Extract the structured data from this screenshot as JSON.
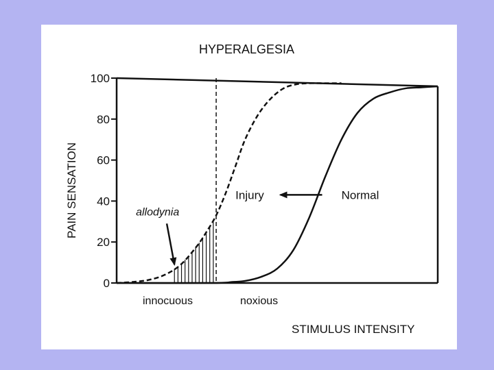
{
  "slide": {
    "background_color": "#b4b4f2",
    "card_color": "#ffffff"
  },
  "chart_data": {
    "type": "line",
    "title": "HYPERALGESIA",
    "xlabel": "STIMULUS INTENSITY",
    "ylabel": "PAIN SENSATION",
    "xlim": [
      0,
      100
    ],
    "ylim": [
      0,
      100
    ],
    "y_ticks": [
      "0",
      "20",
      "40",
      "60",
      "80",
      "100"
    ],
    "y_tick_values": [
      0,
      20,
      40,
      60,
      80,
      100
    ],
    "grid": false,
    "x_regions": [
      {
        "label": "innocuous",
        "from": 0,
        "to": 31
      },
      {
        "label": "noxious",
        "from": 31,
        "to": 100
      }
    ],
    "threshold_x": 31,
    "series": [
      {
        "name": "Injury",
        "style": "dashed",
        "x": [
          0,
          5,
          10,
          15,
          20,
          25,
          28,
          31,
          34,
          37,
          40,
          44,
          48,
          52,
          56,
          60,
          65,
          70
        ],
        "values": [
          0,
          0.5,
          1.5,
          4,
          9,
          18,
          25,
          33,
          44,
          57,
          70,
          82,
          90,
          95,
          97,
          97.5,
          97.5,
          97.5
        ]
      },
      {
        "name": "Normal",
        "style": "solid",
        "x": [
          0,
          30,
          36,
          40,
          45,
          50,
          55,
          60,
          65,
          70,
          75,
          80,
          85,
          90,
          95,
          100
        ],
        "values": [
          0,
          0,
          0.5,
          1,
          3,
          7,
          16,
          32,
          52,
          70,
          83,
          90,
          93,
          95,
          95.5,
          96
        ]
      }
    ],
    "annotations": [
      {
        "text": "allodynia",
        "x": 6,
        "y": 33,
        "arrow_to": [
          18,
          9
        ]
      },
      {
        "text": "Injury",
        "x": 37,
        "y": 41
      },
      {
        "text": "Normal",
        "x": 70,
        "y": 41
      },
      {
        "text": "",
        "arrow_from": [
          64,
          43
        ],
        "arrow_to": [
          51,
          43
        ]
      }
    ],
    "shaded": {
      "label": "allodynia",
      "from": 18,
      "to": 31,
      "style": "vertical-hatch"
    }
  }
}
